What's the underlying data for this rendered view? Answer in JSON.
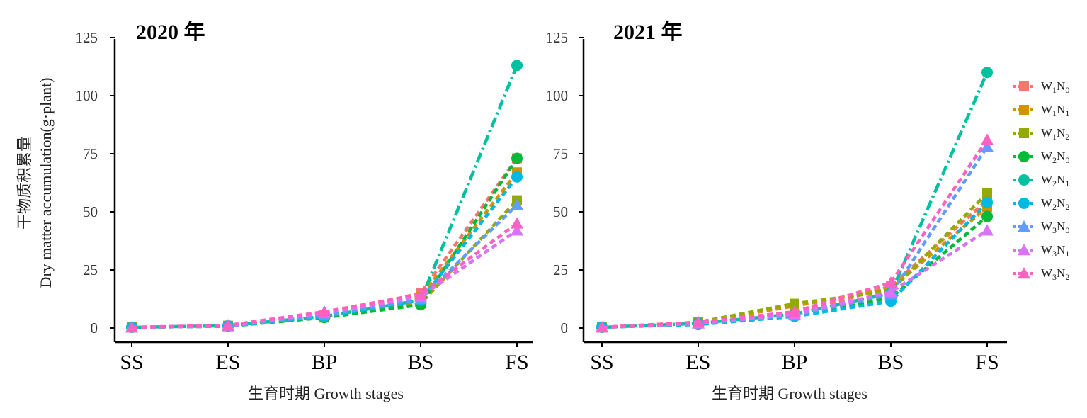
{
  "figure": {
    "ylabel_cn": "干物质积累量",
    "ylabel_en": "Dry matter accumulation(g·plant)",
    "xlabel": "生育时期 Growth stages"
  },
  "legend": [
    {
      "key": "W1N0",
      "main1": "W",
      "sub1": "1",
      "main2": "N",
      "sub2": "0",
      "color": "#F8766D",
      "marker": "square",
      "dash": "8,5"
    },
    {
      "key": "W1N1",
      "main1": "W",
      "sub1": "1",
      "main2": "N",
      "sub2": "1",
      "color": "#D39200",
      "marker": "square",
      "dash": "8,5"
    },
    {
      "key": "W1N2",
      "main1": "W",
      "sub1": "1",
      "main2": "N",
      "sub2": "2",
      "color": "#93AA00",
      "marker": "square",
      "dash": "8,5"
    },
    {
      "key": "W2N0",
      "main1": "W",
      "sub1": "2",
      "main2": "N",
      "sub2": "0",
      "color": "#00BA38",
      "marker": "circle",
      "dash": "8,5"
    },
    {
      "key": "W2N1",
      "main1": "W",
      "sub1": "2",
      "main2": "N",
      "sub2": "1",
      "color": "#00C19F",
      "marker": "circle",
      "dash": "14,5,3,5"
    },
    {
      "key": "W2N2",
      "main1": "W",
      "sub1": "2",
      "main2": "N",
      "sub2": "2",
      "color": "#00B9E3",
      "marker": "circle",
      "dash": "8,5"
    },
    {
      "key": "W3N0",
      "main1": "W",
      "sub1": "3",
      "main2": "N",
      "sub2": "0",
      "color": "#619CFF",
      "marker": "triangle",
      "dash": "8,5"
    },
    {
      "key": "W3N1",
      "main1": "W",
      "sub1": "3",
      "main2": "N",
      "sub2": "1",
      "color": "#DB72FB",
      "marker": "triangle",
      "dash": "8,5"
    },
    {
      "key": "W3N2",
      "main1": "W",
      "sub1": "3",
      "main2": "N",
      "sub2": "2",
      "color": "#FF61C3",
      "marker": "triangle",
      "dash": "8,5"
    }
  ],
  "chart_data": [
    {
      "type": "line",
      "title": "2020 年",
      "categories": [
        "SS",
        "ES",
        "BP",
        "BS",
        "FS"
      ],
      "ylim": [
        0,
        125
      ],
      "yticks": [
        0,
        25,
        50,
        75,
        100,
        125
      ],
      "series": [
        {
          "name": "W1N0",
          "values": [
            0.3,
            1.0,
            5.5,
            15.0,
            73
          ]
        },
        {
          "name": "W1N1",
          "values": [
            0.3,
            1.0,
            5.0,
            13.5,
            67
          ]
        },
        {
          "name": "W1N2",
          "values": [
            0.3,
            0.8,
            4.5,
            10.5,
            55
          ]
        },
        {
          "name": "W2N0",
          "values": [
            0.3,
            0.8,
            4.5,
            10.0,
            73
          ]
        },
        {
          "name": "W2N1",
          "values": [
            0.3,
            1.0,
            5.0,
            12.0,
            113
          ]
        },
        {
          "name": "W2N2",
          "values": [
            0.3,
            0.8,
            5.0,
            12.0,
            65
          ]
        },
        {
          "name": "W3N0",
          "values": [
            0.3,
            0.8,
            5.5,
            12.5,
            53
          ]
        },
        {
          "name": "W3N1",
          "values": [
            0.3,
            1.0,
            6.5,
            13.5,
            42
          ]
        },
        {
          "name": "W3N2",
          "values": [
            0.3,
            1.2,
            7.0,
            14.5,
            45
          ]
        }
      ]
    },
    {
      "type": "line",
      "title": "2021 年",
      "categories": [
        "SS",
        "ES",
        "BP",
        "BS",
        "FS"
      ],
      "ylim": [
        0,
        125
      ],
      "yticks": [
        0,
        25,
        50,
        75,
        100,
        125
      ],
      "series": [
        {
          "name": "W1N0",
          "values": [
            0.3,
            2.0,
            6.0,
            18.0,
            55
          ]
        },
        {
          "name": "W1N1",
          "values": [
            0.3,
            2.5,
            9.5,
            17.0,
            52
          ]
        },
        {
          "name": "W1N2",
          "values": [
            0.3,
            2.5,
            10.5,
            16.0,
            58
          ]
        },
        {
          "name": "W2N0",
          "values": [
            0.3,
            2.0,
            5.5,
            13.0,
            48
          ]
        },
        {
          "name": "W2N1",
          "values": [
            0.3,
            2.0,
            6.0,
            15.0,
            110
          ]
        },
        {
          "name": "W2N2",
          "values": [
            0.3,
            1.5,
            5.0,
            11.5,
            54
          ]
        },
        {
          "name": "W3N0",
          "values": [
            0.3,
            2.0,
            5.5,
            14.5,
            78
          ]
        },
        {
          "name": "W3N1",
          "values": [
            0.3,
            2.0,
            6.0,
            15.5,
            42
          ]
        },
        {
          "name": "W3N2",
          "values": [
            0.3,
            2.5,
            7.0,
            19.5,
            81
          ]
        }
      ]
    }
  ]
}
